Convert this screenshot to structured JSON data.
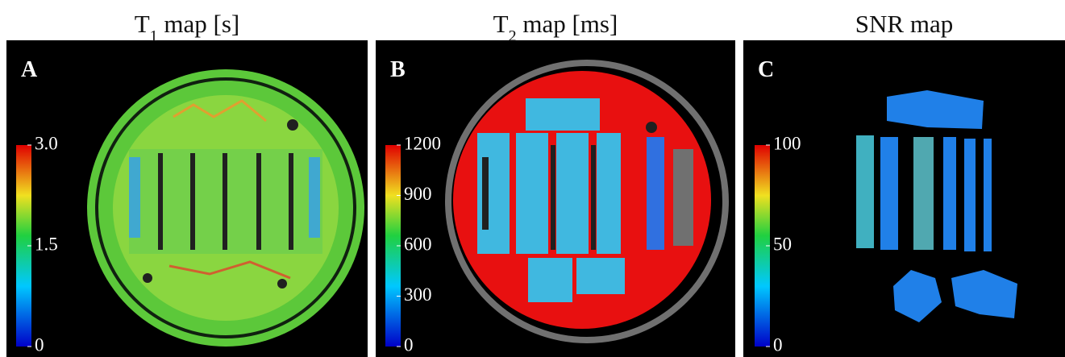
{
  "panels": [
    {
      "title": {
        "main": "T",
        "sub": "1",
        "rest": " map [s]"
      },
      "label": "A",
      "colorbar": {
        "lim": [
          0,
          3
        ],
        "ticks": [
          0,
          1.5,
          {
            "value": 3,
            "label": "3.0"
          }
        ]
      }
    },
    {
      "title": {
        "main": "T",
        "sub": "2",
        "rest": " map [ms]"
      },
      "label": "B",
      "colorbar": {
        "lim": [
          0,
          1200
        ],
        "ticks": [
          0,
          300,
          600,
          900,
          1200
        ]
      }
    },
    {
      "title": {
        "main": "SNR map"
      },
      "label": "C",
      "colorbar": {
        "lim": [
          0,
          100
        ],
        "ticks": [
          0,
          50,
          100
        ]
      }
    }
  ]
}
